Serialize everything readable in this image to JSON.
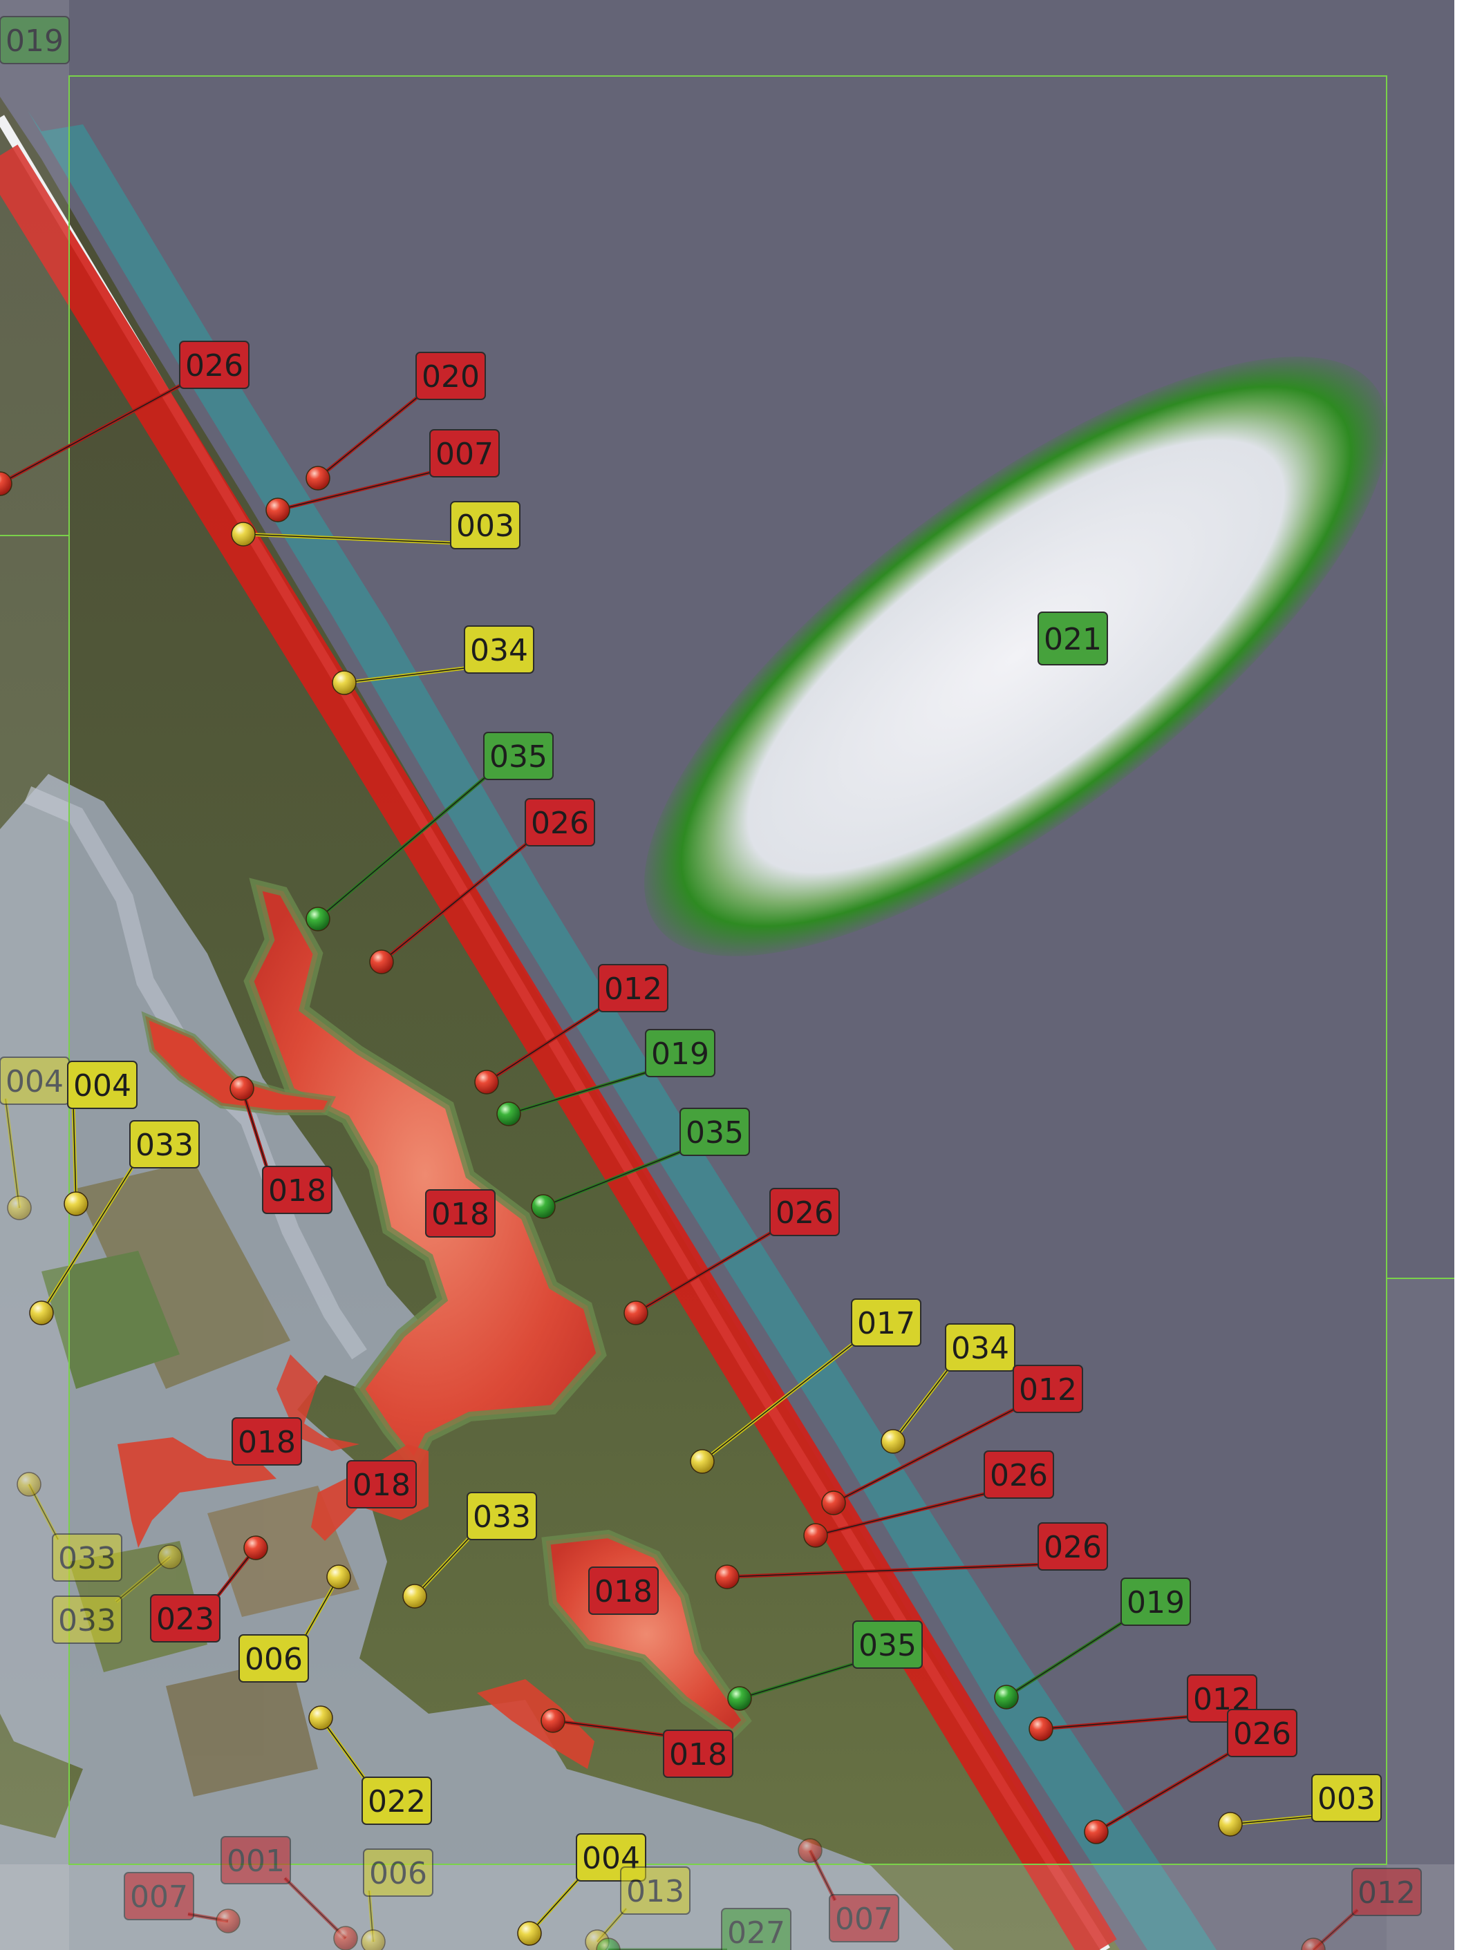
{
  "colors": {
    "sea": "#646476",
    "surf": "#3f8a93",
    "beach": "#e9ecef",
    "forest": "#3f4130",
    "estuary": "#9aa3b0",
    "farmland": "#5f6a3a",
    "hazard_red": "#d21f18",
    "zone_green": "#2e8a22",
    "label_red": "#c8242a",
    "label_yellow": "#d7d32b",
    "label_green": "#46a23c",
    "grid_line": "#7ad24a"
  },
  "zone_label": {
    "text": "021",
    "color": "green"
  },
  "markers": [
    {
      "label": "019",
      "color": "green",
      "faded": true
    },
    {
      "label": "026",
      "color": "red"
    },
    {
      "label": "020",
      "color": "red"
    },
    {
      "label": "007",
      "color": "red"
    },
    {
      "label": "003",
      "color": "yellow"
    },
    {
      "label": "034",
      "color": "yellow"
    },
    {
      "label": "035",
      "color": "green"
    },
    {
      "label": "026",
      "color": "red"
    },
    {
      "label": "012",
      "color": "red"
    },
    {
      "label": "019",
      "color": "green"
    },
    {
      "label": "035",
      "color": "green"
    },
    {
      "label": "004",
      "color": "yellow",
      "faded": true
    },
    {
      "label": "004",
      "color": "yellow"
    },
    {
      "label": "033",
      "color": "yellow"
    },
    {
      "label": "018",
      "color": "red"
    },
    {
      "label": "018",
      "color": "red"
    },
    {
      "label": "026",
      "color": "red"
    },
    {
      "label": "017",
      "color": "yellow"
    },
    {
      "label": "034",
      "color": "yellow"
    },
    {
      "label": "012",
      "color": "red"
    },
    {
      "label": "026",
      "color": "red"
    },
    {
      "label": "026",
      "color": "red"
    },
    {
      "label": "018",
      "color": "red"
    },
    {
      "label": "018",
      "color": "red"
    },
    {
      "label": "033",
      "color": "yellow"
    },
    {
      "label": "018",
      "color": "red"
    },
    {
      "label": "033",
      "color": "yellow",
      "faded": true
    },
    {
      "label": "033",
      "color": "yellow",
      "faded": true
    },
    {
      "label": "023",
      "color": "red"
    },
    {
      "label": "006",
      "color": "yellow"
    },
    {
      "label": "035",
      "color": "green"
    },
    {
      "label": "019",
      "color": "green"
    },
    {
      "label": "012",
      "color": "red"
    },
    {
      "label": "026",
      "color": "red"
    },
    {
      "label": "018",
      "color": "red"
    },
    {
      "label": "003",
      "color": "yellow"
    },
    {
      "label": "022",
      "color": "yellow"
    },
    {
      "label": "004",
      "color": "yellow"
    },
    {
      "label": "001",
      "color": "red",
      "faded": true
    },
    {
      "label": "006",
      "color": "yellow",
      "faded": true
    },
    {
      "label": "007",
      "color": "red",
      "faded": true
    },
    {
      "label": "013",
      "color": "yellow",
      "faded": true
    },
    {
      "label": "027",
      "color": "green",
      "faded": true
    },
    {
      "label": "007",
      "color": "red",
      "faded": true
    },
    {
      "label": "012",
      "color": "red",
      "faded": true
    }
  ]
}
